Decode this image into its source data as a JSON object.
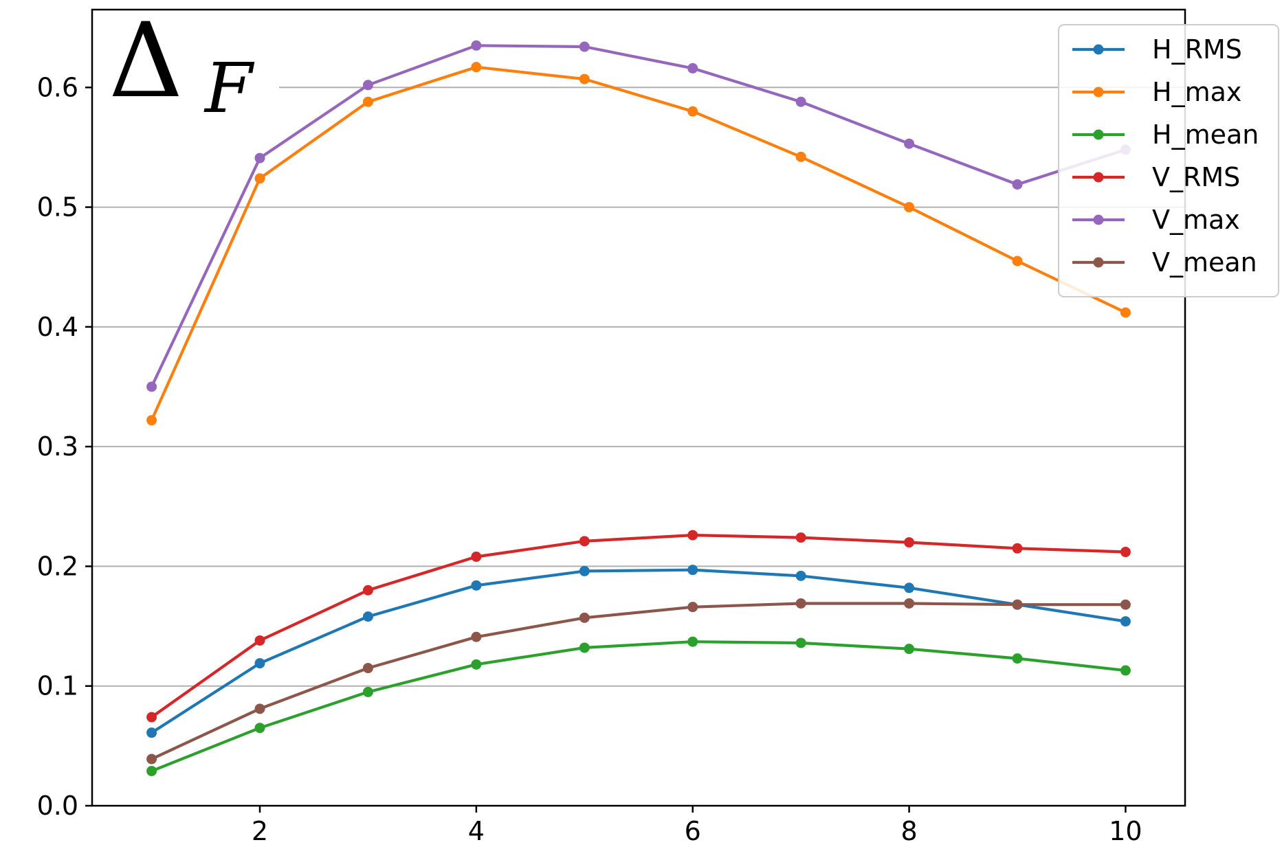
{
  "chart_data": {
    "type": "line",
    "panel_label": {
      "symbol": "Δ",
      "subscript": "F"
    },
    "x": [
      1,
      2,
      3,
      4,
      5,
      6,
      7,
      8,
      9,
      10
    ],
    "xlim": [
      0.45,
      10.55
    ],
    "ylim": [
      0.0,
      0.665
    ],
    "xticks": [
      2,
      4,
      6,
      8,
      10
    ],
    "yticks": [
      0.0,
      0.1,
      0.2,
      0.3,
      0.4,
      0.5,
      0.6
    ],
    "xticklabels": [
      "2",
      "4",
      "6",
      "8",
      "10"
    ],
    "yticklabels": [
      "0.0",
      "0.1",
      "0.2",
      "0.3",
      "0.4",
      "0.5",
      "0.6"
    ],
    "grid": "horizontal",
    "legend_position": "top-right",
    "series": [
      {
        "name": "H_RMS",
        "color": "#1f77b4",
        "values": [
          0.061,
          0.119,
          0.158,
          0.184,
          0.196,
          0.197,
          0.192,
          0.182,
          0.168,
          0.154
        ]
      },
      {
        "name": "H_max",
        "color": "#ff7f0e",
        "values": [
          0.322,
          0.524,
          0.588,
          0.617,
          0.607,
          0.58,
          0.542,
          0.5,
          0.455,
          0.412
        ]
      },
      {
        "name": "H_mean",
        "color": "#2ca02c",
        "values": [
          0.029,
          0.065,
          0.095,
          0.118,
          0.132,
          0.137,
          0.136,
          0.131,
          0.123,
          0.113
        ]
      },
      {
        "name": "V_RMS",
        "color": "#d62728",
        "values": [
          0.074,
          0.138,
          0.18,
          0.208,
          0.221,
          0.226,
          0.224,
          0.22,
          0.215,
          0.212
        ]
      },
      {
        "name": "V_max",
        "color": "#9467bd",
        "values": [
          0.35,
          0.541,
          0.602,
          0.635,
          0.634,
          0.616,
          0.588,
          0.553,
          0.519,
          0.548
        ]
      },
      {
        "name": "V_mean",
        "color": "#8c564b",
        "values": [
          0.039,
          0.081,
          0.115,
          0.141,
          0.157,
          0.166,
          0.169,
          0.169,
          0.168,
          0.168
        ]
      }
    ]
  }
}
